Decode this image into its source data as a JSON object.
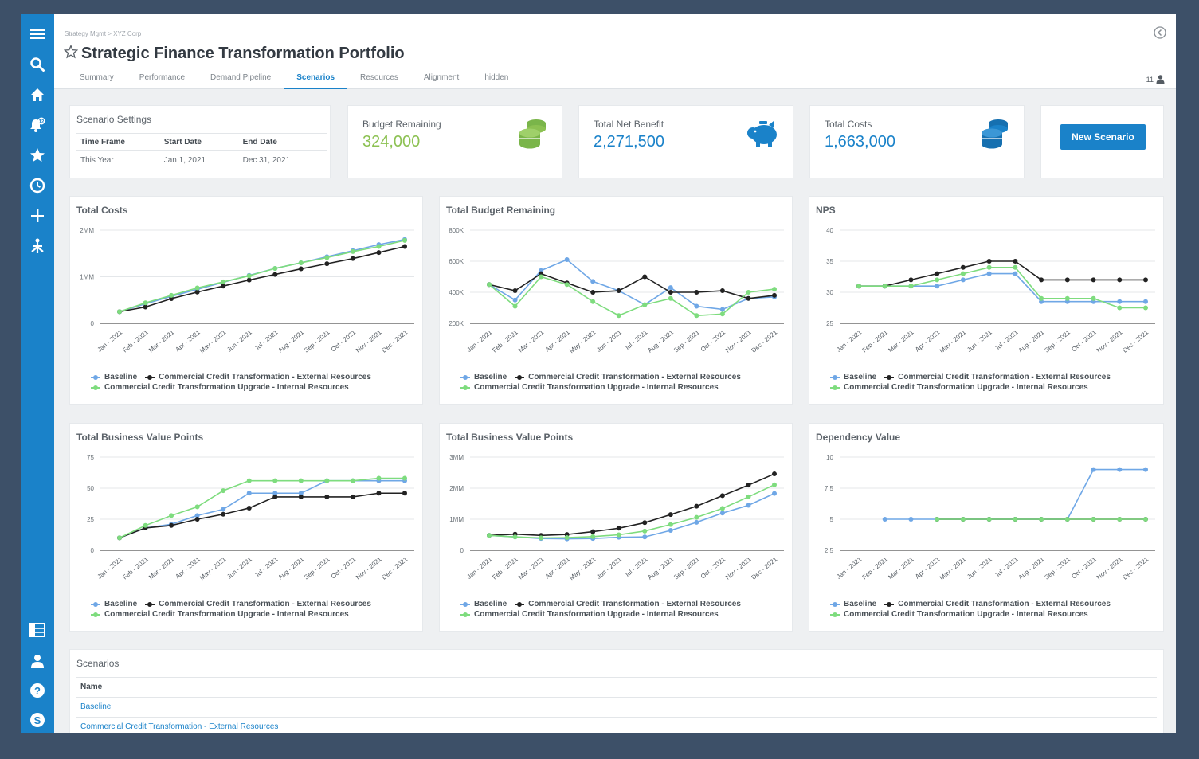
{
  "app": {
    "breadcrumb": "Strategy Mgmt  >  XYZ Corp",
    "title": "Strategic Finance Transformation Portfolio",
    "tabs": [
      {
        "label": "Summary",
        "active": false
      },
      {
        "label": "Performance",
        "active": false
      },
      {
        "label": "Demand Pipeline",
        "active": false
      },
      {
        "label": "Scenarios",
        "active": true
      },
      {
        "label": "Resources",
        "active": false
      },
      {
        "label": "Alignment",
        "active": false
      },
      {
        "label": "hidden",
        "active": false
      }
    ],
    "user_count": "11"
  },
  "sidebar": {
    "top_icons": [
      "menu-icon",
      "search-icon",
      "home-icon",
      "notification-bell-icon",
      "star-icon",
      "clock-icon",
      "plus-icon",
      "tree-icon"
    ],
    "bottom_icons": [
      "grid-icon",
      "user-icon",
      "help-icon",
      "skype-icon"
    ],
    "notification_badge": "12"
  },
  "settings": {
    "title": "Scenario Settings",
    "headers": [
      "Time Frame",
      "Start Date",
      "End Date"
    ],
    "row": [
      "This Year",
      "Jan 1, 2021",
      "Dec 31, 2021"
    ]
  },
  "kpis": [
    {
      "label": "Budget Remaining",
      "value": "324,000",
      "color": "#8cc152",
      "icon": "coins-icon"
    },
    {
      "label": "Total Net Benefit",
      "value": "2,271,500",
      "color": "#1a82c9",
      "icon": "piggy-bank-icon"
    },
    {
      "label": "Total Costs",
      "value": "1,663,000",
      "color": "#1a82c9",
      "icon": "coins-icon"
    }
  ],
  "new_scenario_label": "New Scenario",
  "colors": {
    "accent": "#1a82c9",
    "baseline": "#6fa7e6",
    "external": "#222222",
    "internal": "#7edc7e"
  },
  "legend": [
    "Baseline",
    "Commercial Credit Transformation - External Resources",
    "Commercial Credit Transformation Upgrade - Internal Resources"
  ],
  "chart_data": [
    {
      "type": "line",
      "title": "Total Costs",
      "x": [
        "Jan - 2021",
        "Feb - 2021",
        "Mar - 2021",
        "Apr - 2021",
        "May - 2021",
        "Jun - 2021",
        "Jul - 2021",
        "Aug - 2021",
        "Sep - 2021",
        "Oct - 2021",
        "Nov - 2021",
        "Dec - 2021"
      ],
      "ylim": [
        0,
        2000000
      ],
      "yticks": [
        {
          "v": 0,
          "label": "0"
        },
        {
          "v": 1000000,
          "label": "1MM"
        },
        {
          "v": 2000000,
          "label": "2MM"
        }
      ],
      "series": [
        {
          "name": "Baseline",
          "values": [
            250000,
            420000,
            580000,
            730000,
            880000,
            1030000,
            1180000,
            1300000,
            1430000,
            1560000,
            1690000,
            1800000
          ]
        },
        {
          "name": "Commercial Credit Transformation - External Resources",
          "values": [
            250000,
            350000,
            530000,
            670000,
            800000,
            930000,
            1050000,
            1170000,
            1280000,
            1390000,
            1520000,
            1650000
          ]
        },
        {
          "name": "Commercial Credit Transformation Upgrade - Internal Resources",
          "values": [
            250000,
            440000,
            600000,
            760000,
            890000,
            1020000,
            1180000,
            1300000,
            1410000,
            1540000,
            1650000,
            1780000
          ]
        }
      ]
    },
    {
      "type": "line",
      "title": "Total Budget Remaining",
      "x": [
        "Jan - 2021",
        "Feb - 2021",
        "Mar - 2021",
        "Apr - 2021",
        "May - 2021",
        "Jun - 2021",
        "Jul - 2021",
        "Aug - 2021",
        "Sep - 2021",
        "Oct - 2021",
        "Nov - 2021",
        "Dec - 2021"
      ],
      "ylim": [
        200000,
        800000
      ],
      "yticks": [
        {
          "v": 200000,
          "label": "200K"
        },
        {
          "v": 400000,
          "label": "400K"
        },
        {
          "v": 600000,
          "label": "600K"
        },
        {
          "v": 800000,
          "label": "800K"
        }
      ],
      "series": [
        {
          "name": "Baseline",
          "values": [
            450000,
            350000,
            540000,
            610000,
            470000,
            410000,
            320000,
            430000,
            310000,
            290000,
            360000,
            370000
          ]
        },
        {
          "name": "Commercial Credit Transformation - External Resources",
          "values": [
            450000,
            410000,
            520000,
            460000,
            400000,
            410000,
            500000,
            400000,
            400000,
            410000,
            360000,
            380000
          ]
        },
        {
          "name": "Commercial Credit Transformation Upgrade - Internal Resources",
          "values": [
            450000,
            310000,
            500000,
            450000,
            340000,
            250000,
            320000,
            360000,
            250000,
            260000,
            400000,
            420000
          ]
        }
      ]
    },
    {
      "type": "line",
      "title": "NPS",
      "x": [
        "Jan - 2021",
        "Feb - 2021",
        "Mar - 2021",
        "Apr - 2021",
        "May - 2021",
        "Jun - 2021",
        "Jul - 2021",
        "Aug - 2021",
        "Sep - 2021",
        "Oct - 2021",
        "Nov - 2021",
        "Dec - 2021"
      ],
      "ylim": [
        25,
        40
      ],
      "yticks": [
        {
          "v": 25,
          "label": "25"
        },
        {
          "v": 30,
          "label": "30"
        },
        {
          "v": 35,
          "label": "35"
        },
        {
          "v": 40,
          "label": "40"
        }
      ],
      "series": [
        {
          "name": "Baseline",
          "values": [
            31,
            31,
            31,
            31,
            32,
            33,
            33,
            28.5,
            28.5,
            28.5,
            28.5,
            28.5
          ]
        },
        {
          "name": "Commercial Credit Transformation - External Resources",
          "values": [
            31,
            31,
            32,
            33,
            34,
            35,
            35,
            32,
            32,
            32,
            32,
            32
          ]
        },
        {
          "name": "Commercial Credit Transformation Upgrade - Internal Resources",
          "values": [
            31,
            31,
            31,
            32,
            33,
            34,
            34,
            29,
            29,
            29,
            27.5,
            27.5
          ]
        }
      ]
    },
    {
      "type": "line",
      "title": "Total Business Value Points",
      "x": [
        "Jan - 2021",
        "Feb - 2021",
        "Mar - 2021",
        "Apr - 2021",
        "May - 2021",
        "Jun - 2021",
        "Jul - 2021",
        "Aug - 2021",
        "Sep - 2021",
        "Oct - 2021",
        "Nov - 2021",
        "Dec - 2021"
      ],
      "ylim": [
        0,
        75
      ],
      "yticks": [
        {
          "v": 0,
          "label": "0"
        },
        {
          "v": 25,
          "label": "25"
        },
        {
          "v": 50,
          "label": "50"
        },
        {
          "v": 75,
          "label": "75"
        }
      ],
      "series": [
        {
          "name": "Baseline",
          "values": [
            10,
            18,
            21,
            28,
            33,
            46,
            46,
            46,
            56,
            56,
            56,
            56
          ]
        },
        {
          "name": "Commercial Credit Transformation - External Resources",
          "values": [
            10,
            18,
            20,
            25,
            29,
            34,
            43,
            43,
            43,
            43,
            46,
            46
          ]
        },
        {
          "name": "Commercial Credit Transformation Upgrade - Internal Resources",
          "values": [
            10,
            20,
            28,
            35,
            48,
            56,
            56,
            56,
            56,
            56,
            58,
            58
          ]
        }
      ]
    },
    {
      "type": "line",
      "title": "Total Business Value Points",
      "x": [
        "Jan - 2021",
        "Feb - 2021",
        "Mar - 2021",
        "Apr - 2021",
        "May - 2021",
        "Jun - 2021",
        "Jul - 2021",
        "Aug - 2021",
        "Sep - 2021",
        "Oct - 2021",
        "Nov - 2021",
        "Dec - 2021"
      ],
      "ylim": [
        0,
        3000000
      ],
      "yticks": [
        {
          "v": 0,
          "label": "0"
        },
        {
          "v": 1000000,
          "label": "1MM"
        },
        {
          "v": 2000000,
          "label": "2MM"
        },
        {
          "v": 3000000,
          "label": "3MM"
        }
      ],
      "series": [
        {
          "name": "Baseline",
          "values": [
            480000,
            430000,
            380000,
            370000,
            380000,
            420000,
            430000,
            640000,
            900000,
            1200000,
            1450000,
            1830000
          ]
        },
        {
          "name": "Commercial Credit Transformation - External Resources",
          "values": [
            480000,
            520000,
            480000,
            510000,
            600000,
            710000,
            890000,
            1150000,
            1420000,
            1760000,
            2100000,
            2460000
          ]
        },
        {
          "name": "Commercial Credit Transformation Upgrade - Internal Resources",
          "values": [
            480000,
            430000,
            400000,
            410000,
            440000,
            500000,
            620000,
            830000,
            1060000,
            1350000,
            1720000,
            2110000
          ]
        }
      ]
    },
    {
      "type": "line",
      "title": "Dependency Value",
      "x": [
        "Jan - 2021",
        "Feb - 2021",
        "Mar - 2021",
        "Apr - 2021",
        "May - 2021",
        "Jun - 2021",
        "Jul - 2021",
        "Aug - 2021",
        "Sep - 2021",
        "Oct - 2021",
        "Nov - 2021",
        "Dec - 2021"
      ],
      "ylim": [
        2.5,
        10
      ],
      "yticks": [
        {
          "v": 2.5,
          "label": "2.5"
        },
        {
          "v": 5,
          "label": "5"
        },
        {
          "v": 7.5,
          "label": "7.5"
        },
        {
          "v": 10,
          "label": "10"
        }
      ],
      "series": [
        {
          "name": "Baseline",
          "values": [
            null,
            5,
            5,
            5,
            5,
            5,
            5,
            5,
            5,
            9,
            9,
            9
          ]
        },
        {
          "name": "Commercial Credit Transformation - External Resources",
          "values": [
            null,
            null,
            null,
            5,
            5,
            5,
            5,
            5,
            5,
            5,
            5,
            5
          ]
        },
        {
          "name": "Commercial Credit Transformation Upgrade - Internal Resources",
          "values": [
            null,
            null,
            null,
            5,
            5,
            5,
            5,
            5,
            5,
            5,
            5,
            5
          ]
        }
      ]
    }
  ],
  "scenarios": {
    "title": "Scenarios",
    "header": "Name",
    "rows": [
      "Baseline",
      "Commercial Credit Transformation - External Resources"
    ]
  }
}
